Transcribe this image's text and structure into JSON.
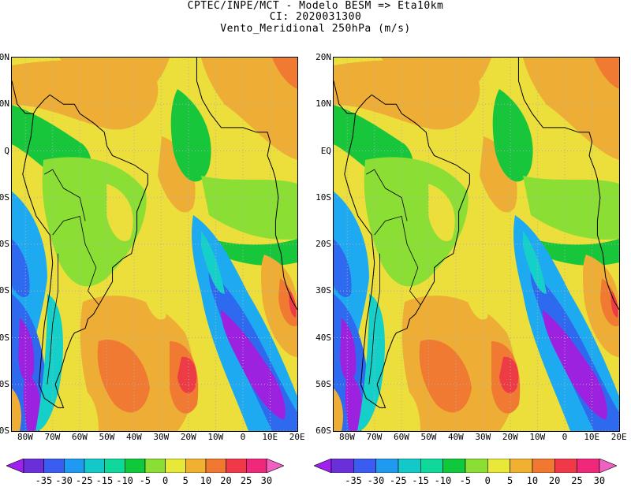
{
  "title": {
    "line1": "CPTEC/INPE/MCT -  Modelo BESM => Eta10km",
    "line2": "CI: 2020031300",
    "line3": "Vento_Meridional 250hPa (m/s)"
  },
  "axes": {
    "lat_labels": [
      "20N",
      "10N",
      "EQ",
      "10S",
      "20S",
      "30S",
      "40S",
      "50S",
      "60S"
    ],
    "lat_labels_left_clipped": [
      "0N",
      "0N",
      "Q",
      "0S",
      "0S",
      "0S",
      "0S",
      "0S",
      "0S"
    ],
    "lon_labels": [
      "80W",
      "70W",
      "60W",
      "50W",
      "40W",
      "30W",
      "20W",
      "10W",
      "0",
      "10E",
      "20E"
    ],
    "lat_range": [
      -60,
      20
    ],
    "lon_range": [
      -85,
      20
    ],
    "grid": "dotted"
  },
  "colorbar": {
    "labels": [
      "-35",
      "-30",
      "-25",
      "-15",
      "-10",
      "-5",
      "0",
      "5",
      "10",
      "20",
      "25",
      "30"
    ],
    "colors": [
      "#a020f0",
      "#6a2fd8",
      "#3a5cf0",
      "#1e9bf0",
      "#12c8c8",
      "#10d89a",
      "#10c83c",
      "#8ade34",
      "#e8e838",
      "#f0b030",
      "#f07830",
      "#f03848",
      "#f0287c",
      "#f060c0"
    ]
  },
  "palette": {
    "violet": "#9d22e0",
    "blue": "#2e6af0",
    "lightblue": "#1eaaf0",
    "cyan": "#14d0c8",
    "teal": "#12d090",
    "green": "#18c63c",
    "lightgreen": "#8ade34",
    "yellow": "#ecdf3c",
    "orange": "#eeae36",
    "darkorange": "#f07a32",
    "red": "#ee3c46"
  }
}
